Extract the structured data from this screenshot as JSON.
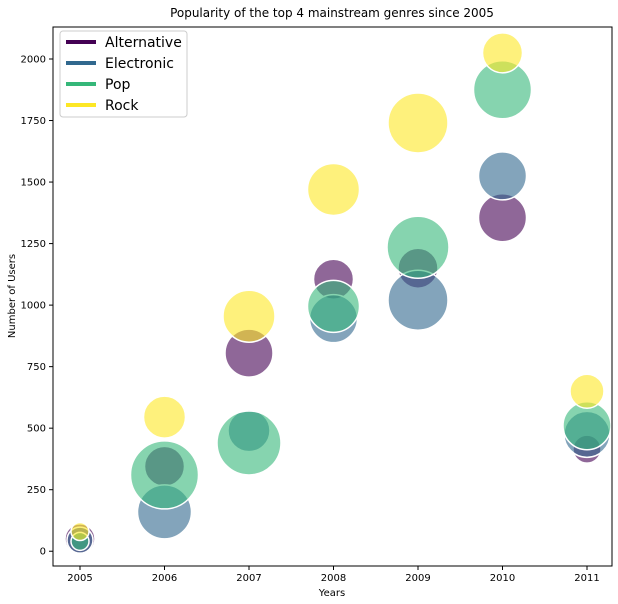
{
  "chart_data": {
    "type": "scatter",
    "title": "Popularity of the top 4 mainstream genres since 2005",
    "xlabel": "Years",
    "ylabel": "Number of Users",
    "x_categories": [
      "2005",
      "2006",
      "2007",
      "2008",
      "2009",
      "2010",
      "2011"
    ],
    "ylim": [
      -60,
      2130
    ],
    "yticks": [
      0,
      250,
      500,
      750,
      1000,
      1250,
      1500,
      1750,
      2000
    ],
    "legend_position": "top-left",
    "grid": false,
    "series": [
      {
        "name": "Alternative",
        "color": "#440154",
        "points": [
          {
            "x": "2005",
            "y": 50,
            "size": 15
          },
          {
            "x": "2006",
            "y": 345,
            "size": 20
          },
          {
            "x": "2007",
            "y": 805,
            "size": 24
          },
          {
            "x": "2008",
            "y": 1105,
            "size": 20
          },
          {
            "x": "2009",
            "y": 1150,
            "size": 20
          },
          {
            "x": "2010",
            "y": 1355,
            "size": 24
          },
          {
            "x": "2011",
            "y": 415,
            "size": 14
          }
        ]
      },
      {
        "name": "Electronic",
        "color": "#31688e",
        "points": [
          {
            "x": "2005",
            "y": 45,
            "size": 13
          },
          {
            "x": "2006",
            "y": 160,
            "size": 27
          },
          {
            "x": "2007",
            "y": 490,
            "size": 21
          },
          {
            "x": "2008",
            "y": 945,
            "size": 24
          },
          {
            "x": "2009",
            "y": 1020,
            "size": 30
          },
          {
            "x": "2010",
            "y": 1525,
            "size": 24
          },
          {
            "x": "2011",
            "y": 475,
            "size": 23
          }
        ]
      },
      {
        "name": "Pop",
        "color": "#35b779",
        "points": [
          {
            "x": "2005",
            "y": 40,
            "size": 9
          },
          {
            "x": "2006",
            "y": 310,
            "size": 34
          },
          {
            "x": "2007",
            "y": 440,
            "size": 32
          },
          {
            "x": "2008",
            "y": 995,
            "size": 26
          },
          {
            "x": "2009",
            "y": 1235,
            "size": 31
          },
          {
            "x": "2010",
            "y": 1875,
            "size": 29
          },
          {
            "x": "2011",
            "y": 510,
            "size": 24
          }
        ]
      },
      {
        "name": "Rock",
        "color": "#fde725",
        "points": [
          {
            "x": "2005",
            "y": 80,
            "size": 9
          },
          {
            "x": "2006",
            "y": 545,
            "size": 21
          },
          {
            "x": "2007",
            "y": 955,
            "size": 26
          },
          {
            "x": "2008",
            "y": 1470,
            "size": 26
          },
          {
            "x": "2009",
            "y": 1740,
            "size": 30
          },
          {
            "x": "2010",
            "y": 2025,
            "size": 20
          },
          {
            "x": "2011",
            "y": 650,
            "size": 17
          }
        ]
      }
    ]
  }
}
